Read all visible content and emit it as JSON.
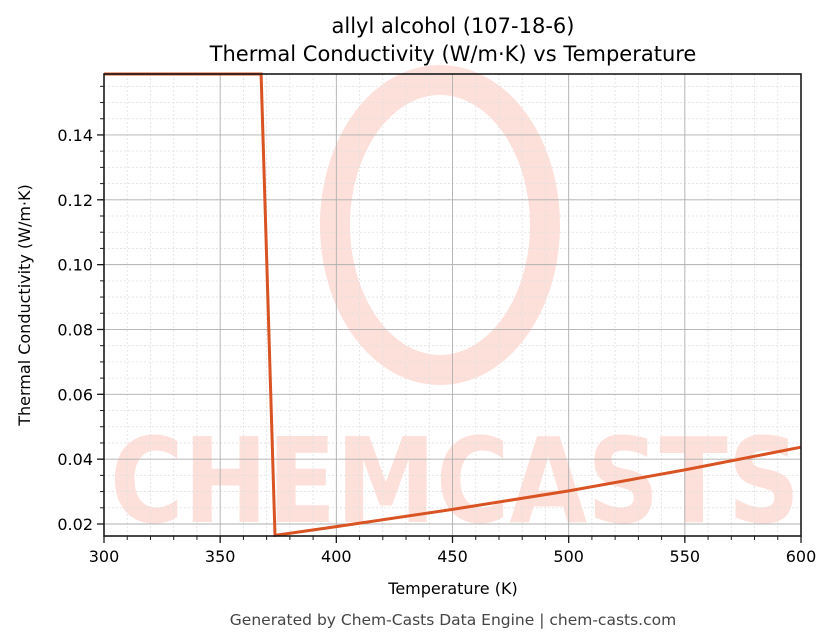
{
  "chart_data": {
    "type": "line",
    "title": "allyl alcohol (107-18-6)",
    "subtitle": "Thermal Conductivity (W/m·K) vs Temperature",
    "xlabel": "Temperature (K)",
    "ylabel": "Thermal Conductivity (W/m·K)",
    "xlim": [
      300,
      600
    ],
    "ylim": [
      0.0163,
      0.1588
    ],
    "x_ticks": [
      300,
      350,
      400,
      450,
      500,
      550,
      600
    ],
    "x_tick_labels": [
      "300",
      "350",
      "400",
      "450",
      "500",
      "550",
      "600"
    ],
    "y_ticks": [
      0.02,
      0.04,
      0.06,
      0.08,
      0.1,
      0.12,
      0.14
    ],
    "y_tick_labels": [
      "0.02",
      "0.04",
      "0.06",
      "0.08",
      "0.10",
      "0.12",
      "0.14"
    ],
    "grid": true,
    "legend": null,
    "series": [
      {
        "name": "Thermal Conductivity",
        "color": "#d95323",
        "x": [
          300,
          367.6,
          373.6,
          400,
          450,
          500,
          550,
          600
        ],
        "y": [
          0.1588,
          0.1588,
          0.0165,
          0.0192,
          0.0245,
          0.0302,
          0.0367,
          0.0437
        ]
      }
    ]
  },
  "watermark": "CHEMCASTS",
  "footer": "Generated by Chem-Casts Data Engine | chem-casts.com",
  "colors": {
    "line": "#d95323",
    "watermark": "#fde0da",
    "grid_major": "#b0b0b0",
    "grid_minor": "#e0e0e0",
    "footer_text": "#444444"
  }
}
